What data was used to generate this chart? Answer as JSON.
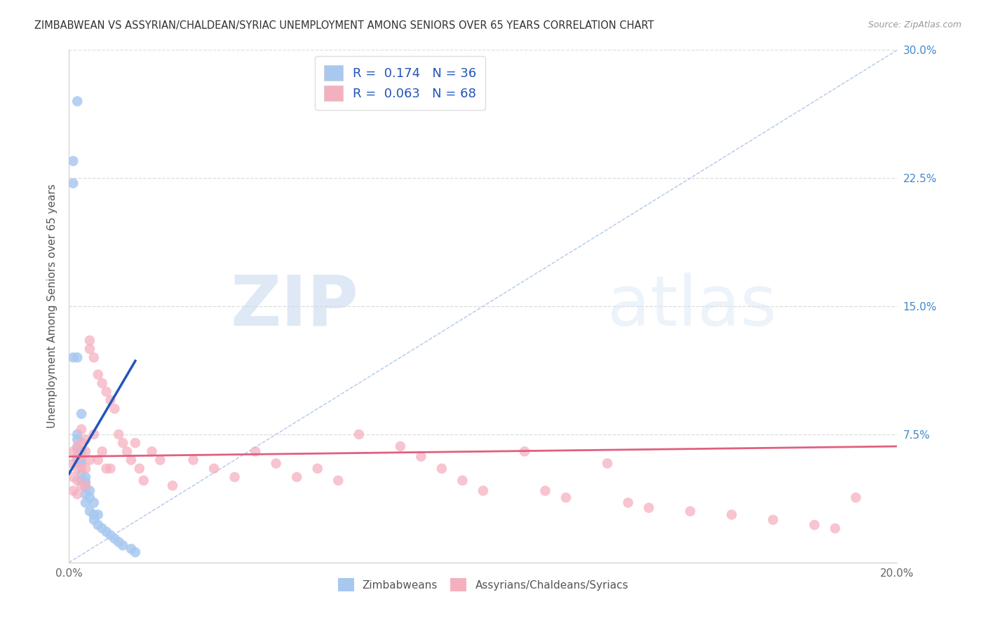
{
  "title": "ZIMBABWEAN VS ASSYRIAN/CHALDEAN/SYRIAC UNEMPLOYMENT AMONG SENIORS OVER 65 YEARS CORRELATION CHART",
  "source": "Source: ZipAtlas.com",
  "ylabel": "Unemployment Among Seniors over 65 years",
  "xlim": [
    0,
    0.2
  ],
  "ylim": [
    0,
    0.3
  ],
  "xticks": [
    0.0,
    0.05,
    0.1,
    0.15,
    0.2
  ],
  "xtick_labels": [
    "0.0%",
    "",
    "",
    "",
    "20.0%"
  ],
  "yticks": [
    0.0,
    0.075,
    0.15,
    0.225,
    0.3
  ],
  "ytick_labels": [
    "",
    "7.5%",
    "15.0%",
    "22.5%",
    "30.0%"
  ],
  "blue_R": 0.174,
  "blue_N": 36,
  "pink_R": 0.063,
  "pink_N": 68,
  "blue_color": "#a8c8f0",
  "pink_color": "#f5b0c0",
  "blue_line_color": "#2255bb",
  "pink_line_color": "#e06080",
  "diag_color": "#b0c8e8",
  "legend_label_blue": "Zimbabweans",
  "legend_label_pink": "Assyrians/Chaldeans/Syriacs",
  "right_axis_color": "#4488cc",
  "grid_color": "#dddddd",
  "blue_x": [
    0.002,
    0.001,
    0.001,
    0.001,
    0.002,
    0.003,
    0.002,
    0.002,
    0.002,
    0.002,
    0.003,
    0.003,
    0.003,
    0.003,
    0.003,
    0.004,
    0.004,
    0.004,
    0.004,
    0.004,
    0.005,
    0.005,
    0.005,
    0.006,
    0.006,
    0.006,
    0.007,
    0.007,
    0.008,
    0.009,
    0.01,
    0.011,
    0.012,
    0.013,
    0.015,
    0.016
  ],
  "blue_y": [
    0.27,
    0.235,
    0.222,
    0.12,
    0.12,
    0.087,
    0.075,
    0.072,
    0.067,
    0.06,
    0.065,
    0.06,
    0.058,
    0.052,
    0.048,
    0.05,
    0.047,
    0.044,
    0.04,
    0.035,
    0.042,
    0.038,
    0.03,
    0.035,
    0.028,
    0.025,
    0.028,
    0.022,
    0.02,
    0.018,
    0.016,
    0.014,
    0.012,
    0.01,
    0.008,
    0.006
  ],
  "pink_x": [
    0.001,
    0.001,
    0.001,
    0.001,
    0.002,
    0.002,
    0.002,
    0.002,
    0.002,
    0.003,
    0.003,
    0.003,
    0.003,
    0.003,
    0.004,
    0.004,
    0.004,
    0.004,
    0.005,
    0.005,
    0.005,
    0.006,
    0.006,
    0.007,
    0.007,
    0.008,
    0.008,
    0.009,
    0.009,
    0.01,
    0.01,
    0.011,
    0.012,
    0.013,
    0.014,
    0.015,
    0.016,
    0.017,
    0.018,
    0.02,
    0.022,
    0.025,
    0.03,
    0.035,
    0.04,
    0.045,
    0.05,
    0.055,
    0.06,
    0.065,
    0.07,
    0.08,
    0.085,
    0.09,
    0.095,
    0.1,
    0.11,
    0.115,
    0.12,
    0.13,
    0.135,
    0.14,
    0.15,
    0.16,
    0.17,
    0.18,
    0.185,
    0.19
  ],
  "pink_y": [
    0.065,
    0.058,
    0.05,
    0.042,
    0.068,
    0.062,
    0.055,
    0.048,
    0.04,
    0.078,
    0.07,
    0.062,
    0.055,
    0.045,
    0.072,
    0.065,
    0.055,
    0.045,
    0.13,
    0.125,
    0.06,
    0.12,
    0.075,
    0.11,
    0.06,
    0.105,
    0.065,
    0.1,
    0.055,
    0.095,
    0.055,
    0.09,
    0.075,
    0.07,
    0.065,
    0.06,
    0.07,
    0.055,
    0.048,
    0.065,
    0.06,
    0.045,
    0.06,
    0.055,
    0.05,
    0.065,
    0.058,
    0.05,
    0.055,
    0.048,
    0.075,
    0.068,
    0.062,
    0.055,
    0.048,
    0.042,
    0.065,
    0.042,
    0.038,
    0.058,
    0.035,
    0.032,
    0.03,
    0.028,
    0.025,
    0.022,
    0.02,
    0.038
  ]
}
